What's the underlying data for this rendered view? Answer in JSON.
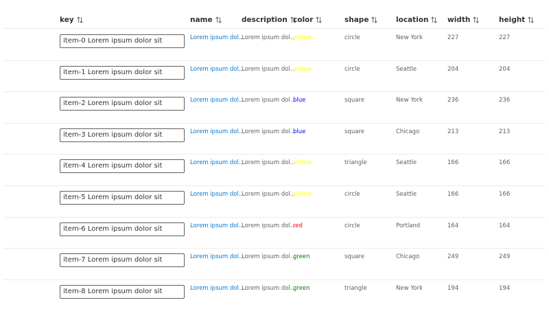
{
  "table": {
    "headers": [
      "key",
      "name",
      "description",
      "color",
      "shape",
      "location",
      "width",
      "height"
    ],
    "rows": [
      [
        "item-0 Lorem ipsum dolor sit",
        "Lorem ipsum dol...",
        "Lorem ipsum dol...",
        "yellow",
        "circle",
        "New York",
        227,
        227
      ],
      [
        "item-1 Lorem ipsum dolor sit",
        "Lorem ipsum dol...",
        "Lorem ipsum dol...",
        "yellow",
        "circle",
        "Seattle",
        204,
        204
      ],
      [
        "item-2 Lorem ipsum dolor sit",
        "Lorem ipsum dol...",
        "Lorem ipsum dol...",
        "blue",
        "square",
        "New York",
        236,
        236
      ],
      [
        "item-3 Lorem ipsum dolor sit",
        "Lorem ipsum dol...",
        "Lorem ipsum dol...",
        "blue",
        "square",
        "Chicago",
        213,
        213
      ],
      [
        "item-4 Lorem ipsum dolor sit",
        "Lorem ipsum dol...",
        "Lorem ipsum dol...",
        "yellow",
        "triangle",
        "Seattle",
        166,
        166
      ],
      [
        "item-5 Lorem ipsum dolor sit",
        "Lorem ipsum dol...",
        "Lorem ipsum dol...",
        "yellow",
        "circle",
        "Seattle",
        166,
        166
      ],
      [
        "item-6 Lorem ipsum dolor sit",
        "Lorem ipsum dol...",
        "Lorem ipsum dol...",
        "red",
        "circle",
        "Portland",
        164,
        164
      ],
      [
        "item-7 Lorem ipsum dolor sit",
        "Lorem ipsum dol...",
        "Lorem ipsum dol...",
        "green",
        "square",
        "Chicago",
        249,
        249
      ],
      [
        "item-8 Lorem ipsum dolor sit",
        "Lorem ipsum dol...",
        "Lorem ipsum dol...",
        "green",
        "triangle",
        "New York",
        194,
        194
      ]
    ]
  }
}
